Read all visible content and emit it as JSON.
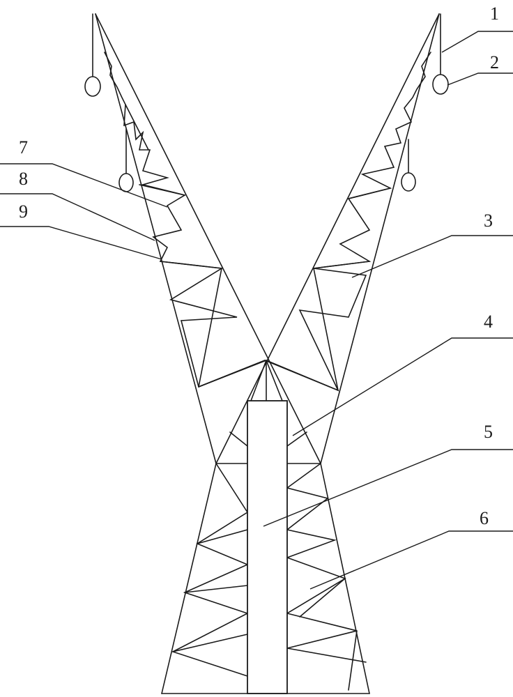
{
  "figure": {
    "callouts": [
      {
        "id": "c1",
        "text": "1"
      },
      {
        "id": "c2",
        "text": "2"
      },
      {
        "id": "c3",
        "text": "3"
      },
      {
        "id": "c4",
        "text": "4"
      },
      {
        "id": "c5",
        "text": "5"
      },
      {
        "id": "c6",
        "text": "6"
      },
      {
        "id": "c7",
        "text": "7"
      },
      {
        "id": "c8",
        "text": "8"
      },
      {
        "id": "c9",
        "text": "9"
      }
    ]
  }
}
